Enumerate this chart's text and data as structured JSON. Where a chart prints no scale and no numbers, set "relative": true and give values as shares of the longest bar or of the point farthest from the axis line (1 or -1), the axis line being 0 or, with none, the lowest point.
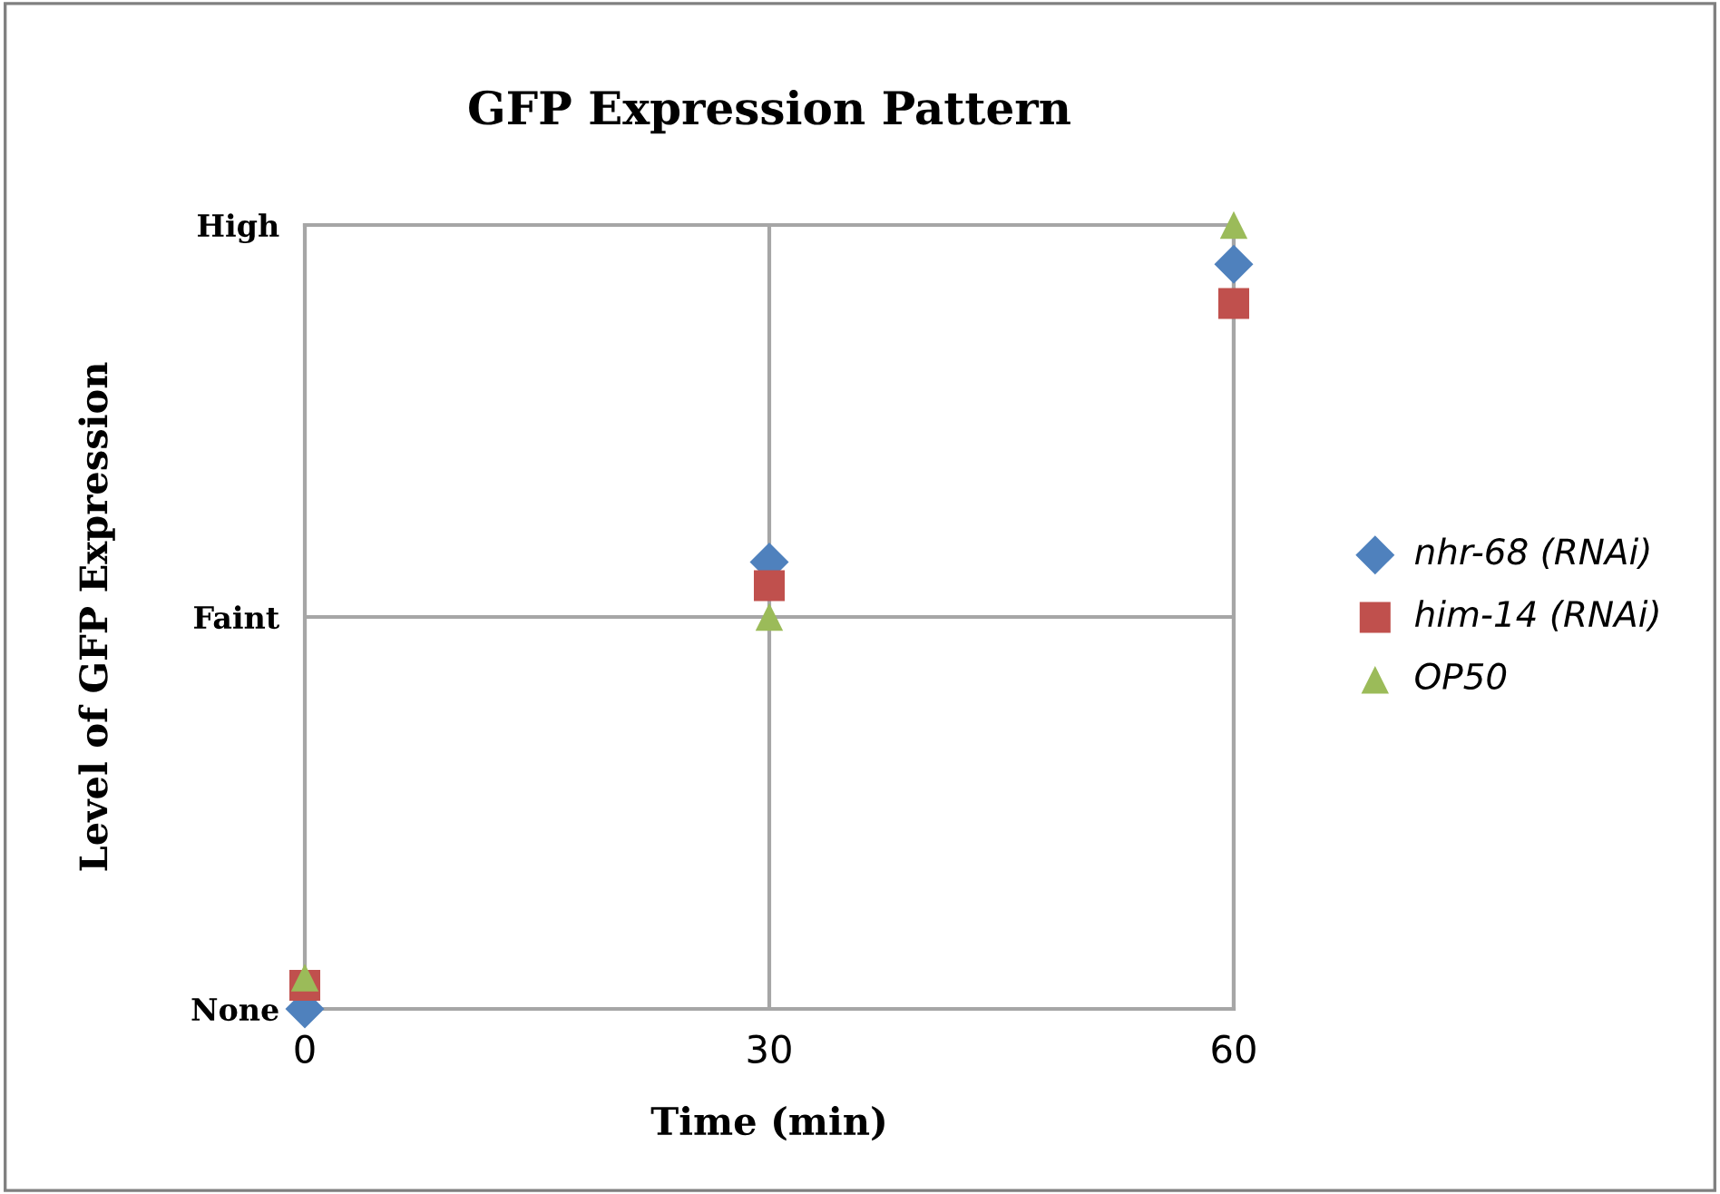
{
  "chart_data": {
    "type": "scatter",
    "title": "GFP Expression Pattern",
    "xlabel": "Time (min)",
    "ylabel": "Level of GFP Expression",
    "x": [
      0,
      30,
      60
    ],
    "series": [
      {
        "name": "nhr-68 (RNAi)",
        "color": "#4f81bd",
        "marker": "diamond",
        "values": [
          0,
          0.57,
          0.95
        ]
      },
      {
        "name": "him-14 (RNAi)",
        "color": "#c0504d",
        "marker": "square",
        "values": [
          0.03,
          0.54,
          0.9
        ]
      },
      {
        "name": "OP50",
        "color": "#9bbb59",
        "marker": "triangle",
        "values": [
          0.04,
          0.5,
          1.0
        ]
      }
    ],
    "relative": true,
    "annotations": [
      "None",
      "Faint",
      "High"
    ],
    "xlim": [
      0,
      60
    ],
    "xticks": [
      0,
      30,
      60
    ],
    "grid": true,
    "legend": "right"
  }
}
